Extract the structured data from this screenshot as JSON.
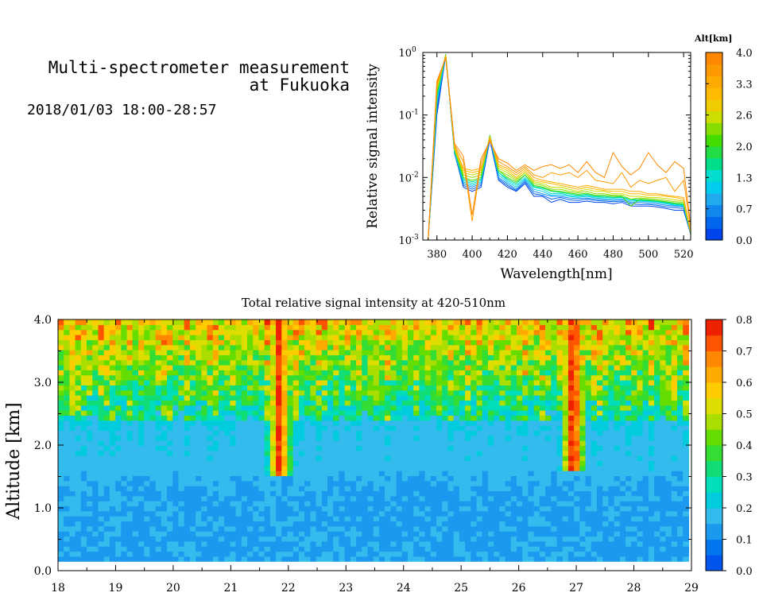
{
  "header": {
    "title_line1": "Multi-spectrometer measurement",
    "title_line2": "at Fukuoka",
    "datetime": "2018/01/03 18:00-28:57"
  },
  "chart_data": [
    {
      "type": "line",
      "ylabel": "Relative signal intensity",
      "xlabel": "Wavelength[nm]",
      "yscale": "log",
      "xlim": [
        372,
        524
      ],
      "ylim": [
        0.001,
        1
      ],
      "xticks": [
        380,
        400,
        420,
        440,
        460,
        480,
        500,
        520
      ],
      "yticks": [
        {
          "value": 1,
          "label": "10",
          "exp": "0"
        },
        {
          "value": 0.1,
          "label": "10",
          "exp": "-1"
        },
        {
          "value": 0.01,
          "label": "10",
          "exp": "-2"
        },
        {
          "value": 0.001,
          "label": "10",
          "exp": "-3"
        }
      ],
      "colorbar": {
        "title": "Alt[km]",
        "range": [
          0,
          4.0
        ],
        "labels": [
          "4.0",
          "3.3",
          "2.6",
          "2.0",
          "1.3",
          "0.7",
          "0.0"
        ],
        "colors": [
          "#0044ee",
          "#0066ee",
          "#1188ee",
          "#22aaee",
          "#00ccee",
          "#00ddcc",
          "#00dd88",
          "#22dd44",
          "#44dd00",
          "#88dd00",
          "#ccdd00",
          "#eecc00",
          "#ffbb00",
          "#ffaa00",
          "#ff9900",
          "#ff8800"
        ]
      },
      "x": [
        375,
        380,
        385,
        390,
        395,
        400,
        405,
        410,
        415,
        420,
        425,
        430,
        435,
        440,
        445,
        450,
        455,
        460,
        465,
        470,
        475,
        480,
        485,
        490,
        495,
        500,
        505,
        510,
        515,
        520,
        525
      ],
      "series": [
        {
          "alt": 0.0,
          "values": [
            0.001,
            0.1,
            0.9,
            0.025,
            0.007,
            0.006,
            0.007,
            0.04,
            0.009,
            0.007,
            0.006,
            0.008,
            0.005,
            0.005,
            0.004,
            0.0045,
            0.004,
            0.004,
            0.0042,
            0.004,
            0.004,
            0.0038,
            0.004,
            0.0035,
            0.0035,
            0.0035,
            0.0034,
            0.0032,
            0.003,
            0.003,
            0.001
          ]
        },
        {
          "alt": 0.3,
          "values": [
            0.001,
            0.12,
            0.92,
            0.024,
            0.0075,
            0.0065,
            0.0075,
            0.042,
            0.0095,
            0.0075,
            0.0062,
            0.0085,
            0.0055,
            0.0052,
            0.0045,
            0.0048,
            0.0044,
            0.0043,
            0.0045,
            0.0043,
            0.0042,
            0.0041,
            0.0042,
            0.0038,
            0.0037,
            0.0037,
            0.0036,
            0.0034,
            0.0033,
            0.0032,
            0.001
          ]
        },
        {
          "alt": 0.7,
          "values": [
            0.001,
            0.14,
            0.93,
            0.025,
            0.008,
            0.007,
            0.008,
            0.045,
            0.01,
            0.008,
            0.0065,
            0.009,
            0.006,
            0.0055,
            0.005,
            0.005,
            0.0047,
            0.0046,
            0.0047,
            0.0045,
            0.0044,
            0.0043,
            0.0044,
            0.004,
            0.004,
            0.0039,
            0.0038,
            0.0036,
            0.0035,
            0.0034,
            0.001
          ]
        },
        {
          "alt": 1.0,
          "values": [
            0.001,
            0.16,
            0.93,
            0.026,
            0.0085,
            0.0075,
            0.0085,
            0.046,
            0.011,
            0.0085,
            0.007,
            0.0095,
            0.0065,
            0.006,
            0.0052,
            0.0053,
            0.005,
            0.0048,
            0.005,
            0.0047,
            0.0046,
            0.0045,
            0.0046,
            0.0042,
            0.0042,
            0.0041,
            0.004,
            0.0038,
            0.0036,
            0.0035,
            0.001
          ]
        },
        {
          "alt": 1.3,
          "values": [
            0.001,
            0.18,
            0.94,
            0.026,
            0.009,
            0.008,
            0.009,
            0.047,
            0.012,
            0.009,
            0.0075,
            0.01,
            0.007,
            0.0065,
            0.0055,
            0.0056,
            0.0052,
            0.005,
            0.0052,
            0.0049,
            0.0048,
            0.0047,
            0.0048,
            0.0044,
            0.0043,
            0.0042,
            0.0041,
            0.0039,
            0.0037,
            0.0036,
            0.001
          ]
        },
        {
          "alt": 1.7,
          "values": [
            0.001,
            0.2,
            0.94,
            0.027,
            0.0095,
            0.0085,
            0.0095,
            0.048,
            0.012,
            0.0095,
            0.008,
            0.011,
            0.0072,
            0.0068,
            0.006,
            0.0058,
            0.0055,
            0.0052,
            0.0054,
            0.005,
            0.005,
            0.0048,
            0.0049,
            0.0045,
            0.0044,
            0.0043,
            0.0042,
            0.004,
            0.0038,
            0.0037,
            0.001
          ]
        },
        {
          "alt": 2.0,
          "values": [
            0.001,
            0.22,
            0.93,
            0.028,
            0.01,
            0.009,
            0.01,
            0.047,
            0.013,
            0.01,
            0.0085,
            0.011,
            0.0075,
            0.007,
            0.0062,
            0.006,
            0.0057,
            0.0054,
            0.0056,
            0.0052,
            0.0052,
            0.005,
            0.005,
            0.0035,
            0.0045,
            0.0044,
            0.0043,
            0.0041,
            0.0039,
            0.0038,
            0.001
          ]
        },
        {
          "alt": 2.3,
          "values": [
            0.001,
            0.24,
            0.92,
            0.028,
            0.011,
            0.01,
            0.011,
            0.046,
            0.013,
            0.011,
            0.009,
            0.012,
            0.008,
            0.0075,
            0.0065,
            0.0065,
            0.006,
            0.0057,
            0.006,
            0.0055,
            0.0055,
            0.0052,
            0.0052,
            0.0045,
            0.0047,
            0.0046,
            0.0045,
            0.0043,
            0.0041,
            0.004,
            0.001
          ]
        },
        {
          "alt": 2.6,
          "values": [
            0.001,
            0.26,
            0.9,
            0.029,
            0.012,
            0.011,
            0.012,
            0.045,
            0.014,
            0.012,
            0.0095,
            0.012,
            0.0085,
            0.008,
            0.007,
            0.007,
            0.0065,
            0.006,
            0.0065,
            0.006,
            0.006,
            0.0055,
            0.0055,
            0.005,
            0.005,
            0.0048,
            0.0048,
            0.0046,
            0.0044,
            0.0042,
            0.001
          ]
        },
        {
          "alt": 3.0,
          "values": [
            0.001,
            0.28,
            0.88,
            0.03,
            0.013,
            0.012,
            0.013,
            0.044,
            0.015,
            0.013,
            0.01,
            0.013,
            0.009,
            0.0085,
            0.008,
            0.0075,
            0.007,
            0.0065,
            0.007,
            0.0065,
            0.0062,
            0.006,
            0.006,
            0.0055,
            0.0055,
            0.0052,
            0.0052,
            0.005,
            0.0048,
            0.0045,
            0.001
          ]
        },
        {
          "alt": 3.3,
          "values": [
            0.001,
            0.3,
            0.86,
            0.032,
            0.014,
            0.013,
            0.014,
            0.042,
            0.016,
            0.014,
            0.011,
            0.014,
            0.01,
            0.009,
            0.0085,
            0.008,
            0.0075,
            0.007,
            0.0075,
            0.007,
            0.0065,
            0.0065,
            0.0065,
            0.006,
            0.006,
            0.0055,
            0.0055,
            0.0052,
            0.005,
            0.0048,
            0.001
          ]
        },
        {
          "alt": 3.7,
          "values": [
            0.001,
            0.32,
            0.84,
            0.033,
            0.018,
            0.002,
            0.017,
            0.04,
            0.018,
            0.015,
            0.012,
            0.015,
            0.011,
            0.01,
            0.012,
            0.011,
            0.012,
            0.01,
            0.013,
            0.009,
            0.0085,
            0.008,
            0.012,
            0.007,
            0.009,
            0.008,
            0.009,
            0.01,
            0.006,
            0.009,
            0.001
          ]
        },
        {
          "alt": 4.0,
          "values": [
            0.001,
            0.35,
            0.82,
            0.035,
            0.022,
            0.0025,
            0.02,
            0.038,
            0.02,
            0.017,
            0.013,
            0.016,
            0.013,
            0.015,
            0.016,
            0.014,
            0.016,
            0.012,
            0.018,
            0.012,
            0.01,
            0.025,
            0.015,
            0.011,
            0.014,
            0.025,
            0.016,
            0.012,
            0.018,
            0.014,
            0.001
          ]
        }
      ]
    },
    {
      "type": "heatmap",
      "title": "Total relative signal intensity at 420-510nm",
      "ylabel": "Altitude [km]",
      "xlim": [
        18,
        29
      ],
      "ylim": [
        0.0,
        4.0
      ],
      "xticks": [
        "18",
        "19",
        "20",
        "21",
        "22",
        "23",
        "24",
        "25",
        "26",
        "27",
        "28",
        "29"
      ],
      "yticks": [
        "0.0",
        "1.0",
        "2.0",
        "3.0",
        "4.0"
      ],
      "data_x_range": [
        18,
        28.95
      ],
      "data_y_range": [
        0.15,
        4.0
      ],
      "colorbar": {
        "range": [
          0.0,
          0.8
        ],
        "labels": [
          "0.8",
          "0.7",
          "0.6",
          "0.5",
          "0.4",
          "0.3",
          "0.2",
          "0.1",
          "0.0"
        ],
        "colors": [
          "#0055ee",
          "#0077ee",
          "#1a99ee",
          "#33bbee",
          "#00ccdd",
          "#00ddbb",
          "#11dd77",
          "#33dd33",
          "#66dd00",
          "#aadd00",
          "#dddd00",
          "#ffcc00",
          "#ffaa00",
          "#ff8800",
          "#ff5500",
          "#ee2200"
        ]
      },
      "plumes": [
        {
          "time": 21.85,
          "bottom": 1.5,
          "strength": 0.75
        },
        {
          "time": 26.95,
          "bottom": 1.6,
          "strength": 0.8
        },
        {
          "time": 18.25,
          "bottom": 2.5,
          "strength": 0.45
        },
        {
          "time": 20.7,
          "bottom": 2.6,
          "strength": 0.4
        },
        {
          "time": 23.5,
          "bottom": 2.6,
          "strength": 0.45
        },
        {
          "time": 24.6,
          "bottom": 2.5,
          "strength": 0.4
        },
        {
          "time": 28.55,
          "bottom": 2.5,
          "strength": 0.4
        }
      ]
    }
  ]
}
